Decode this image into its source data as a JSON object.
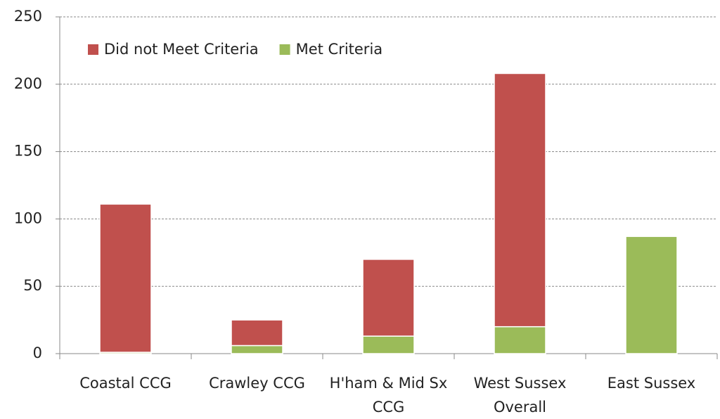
{
  "chart_data": {
    "type": "stacked_bar",
    "categories": [
      "Coastal CCG",
      "Crawley CCG",
      "H'ham & Mid Sx CCG",
      "West Sussex Overall",
      "East Sussex"
    ],
    "series": [
      {
        "name": "Did not Meet Criteria",
        "color": "#c0504d",
        "values": [
          110,
          19,
          57,
          188,
          0
        ]
      },
      {
        "name": "Met Criteria",
        "color": "#9bbb59",
        "values": [
          1,
          6,
          13,
          20,
          87
        ]
      }
    ],
    "ylim": [
      0,
      250
    ],
    "yticks": [
      0,
      50,
      100,
      150,
      200,
      250
    ],
    "grid": true,
    "legend": "top-left"
  }
}
